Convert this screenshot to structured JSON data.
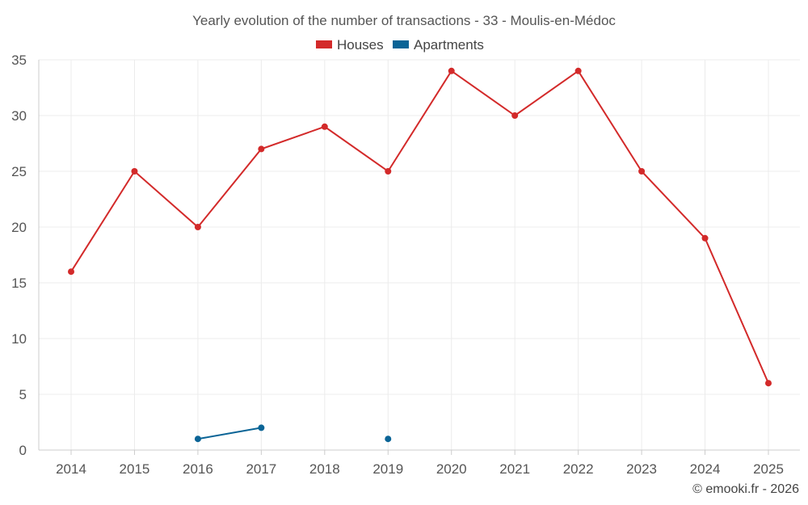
{
  "chart_data": {
    "type": "line",
    "title": "Yearly evolution of the number of transactions - 33 - Moulis-en-Médoc",
    "categories": [
      "2014",
      "2015",
      "2016",
      "2017",
      "2018",
      "2019",
      "2020",
      "2021",
      "2022",
      "2023",
      "2024",
      "2025"
    ],
    "series": [
      {
        "name": "Houses",
        "color": "#d32a2a",
        "values": [
          16,
          25,
          20,
          27,
          29,
          25,
          34,
          30,
          34,
          25,
          19,
          6
        ]
      },
      {
        "name": "Apartments",
        "color": "#0a6496",
        "values": [
          null,
          null,
          1,
          2,
          null,
          1,
          null,
          null,
          null,
          null,
          null,
          null
        ]
      }
    ],
    "ylim": [
      0,
      35
    ],
    "yticks": [
      "0",
      "5",
      "10",
      "15",
      "20",
      "25",
      "30",
      "35"
    ],
    "grid": true,
    "legend": "top-center",
    "credit": "© emooki.fr - 2026"
  }
}
